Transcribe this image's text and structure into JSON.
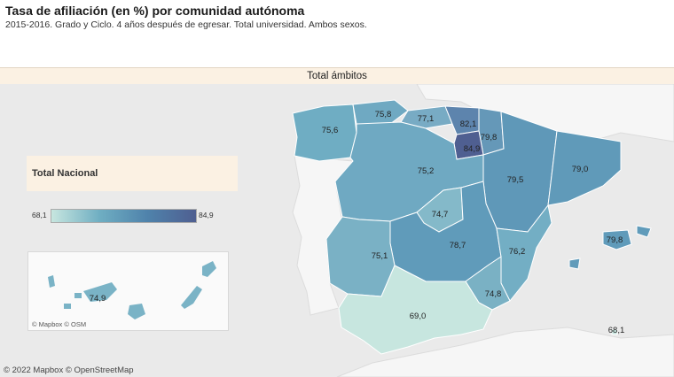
{
  "title": "Tasa de afiliación (en %) por comunidad autónoma",
  "subtitle": "2015-2016. Grado y Ciclo. 4 años después de egresar. Total universidad. Ambos sexos.",
  "panel_header": "Total ámbitos",
  "legend": {
    "title": "Total Nacional",
    "min": "68,1",
    "max": "84,9"
  },
  "canary_attribution": "© Mapbox  © OSM",
  "attribution": "© 2022 Mapbox  © OpenStreetMap",
  "colors": {
    "background": "#eaeaea",
    "low": "#c7e6df",
    "mid": "#6faec2",
    "high": "#4f5f91"
  },
  "regions": [
    {
      "name": "Galicia",
      "label": "75,6",
      "value": 75.6
    },
    {
      "name": "Asturias",
      "label": "75,8",
      "value": 75.8
    },
    {
      "name": "Cantabria",
      "label": "77,1",
      "value": 77.1
    },
    {
      "name": "País Vasco",
      "label": "82,1",
      "value": 82.1
    },
    {
      "name": "Navarra",
      "label": "79,8",
      "value": 79.8
    },
    {
      "name": "La Rioja",
      "label": "84,9",
      "value": 84.9
    },
    {
      "name": "Castilla y León",
      "label": "75,2",
      "value": 75.2
    },
    {
      "name": "Aragón",
      "label": "79,5",
      "value": 79.5
    },
    {
      "name": "Cataluña",
      "label": "79,0",
      "value": 79.0
    },
    {
      "name": "Madrid",
      "label": "74,7",
      "value": 74.7
    },
    {
      "name": "Castilla-La Mancha",
      "label": "78,7",
      "value": 78.7
    },
    {
      "name": "Extremadura",
      "label": "75,1",
      "value": 75.1
    },
    {
      "name": "C. Valenciana",
      "label": "76,2",
      "value": 76.2
    },
    {
      "name": "Murcia",
      "label": "74,8",
      "value": 74.8
    },
    {
      "name": "Andalucía",
      "label": "69,0",
      "value": 69.0
    },
    {
      "name": "Baleares",
      "label": "79,8",
      "value": 79.8
    },
    {
      "name": "Ceuta/Melilla",
      "label": "68,1",
      "value": 68.1
    },
    {
      "name": "Canarias",
      "label": "74,9",
      "value": 74.9
    }
  ]
}
